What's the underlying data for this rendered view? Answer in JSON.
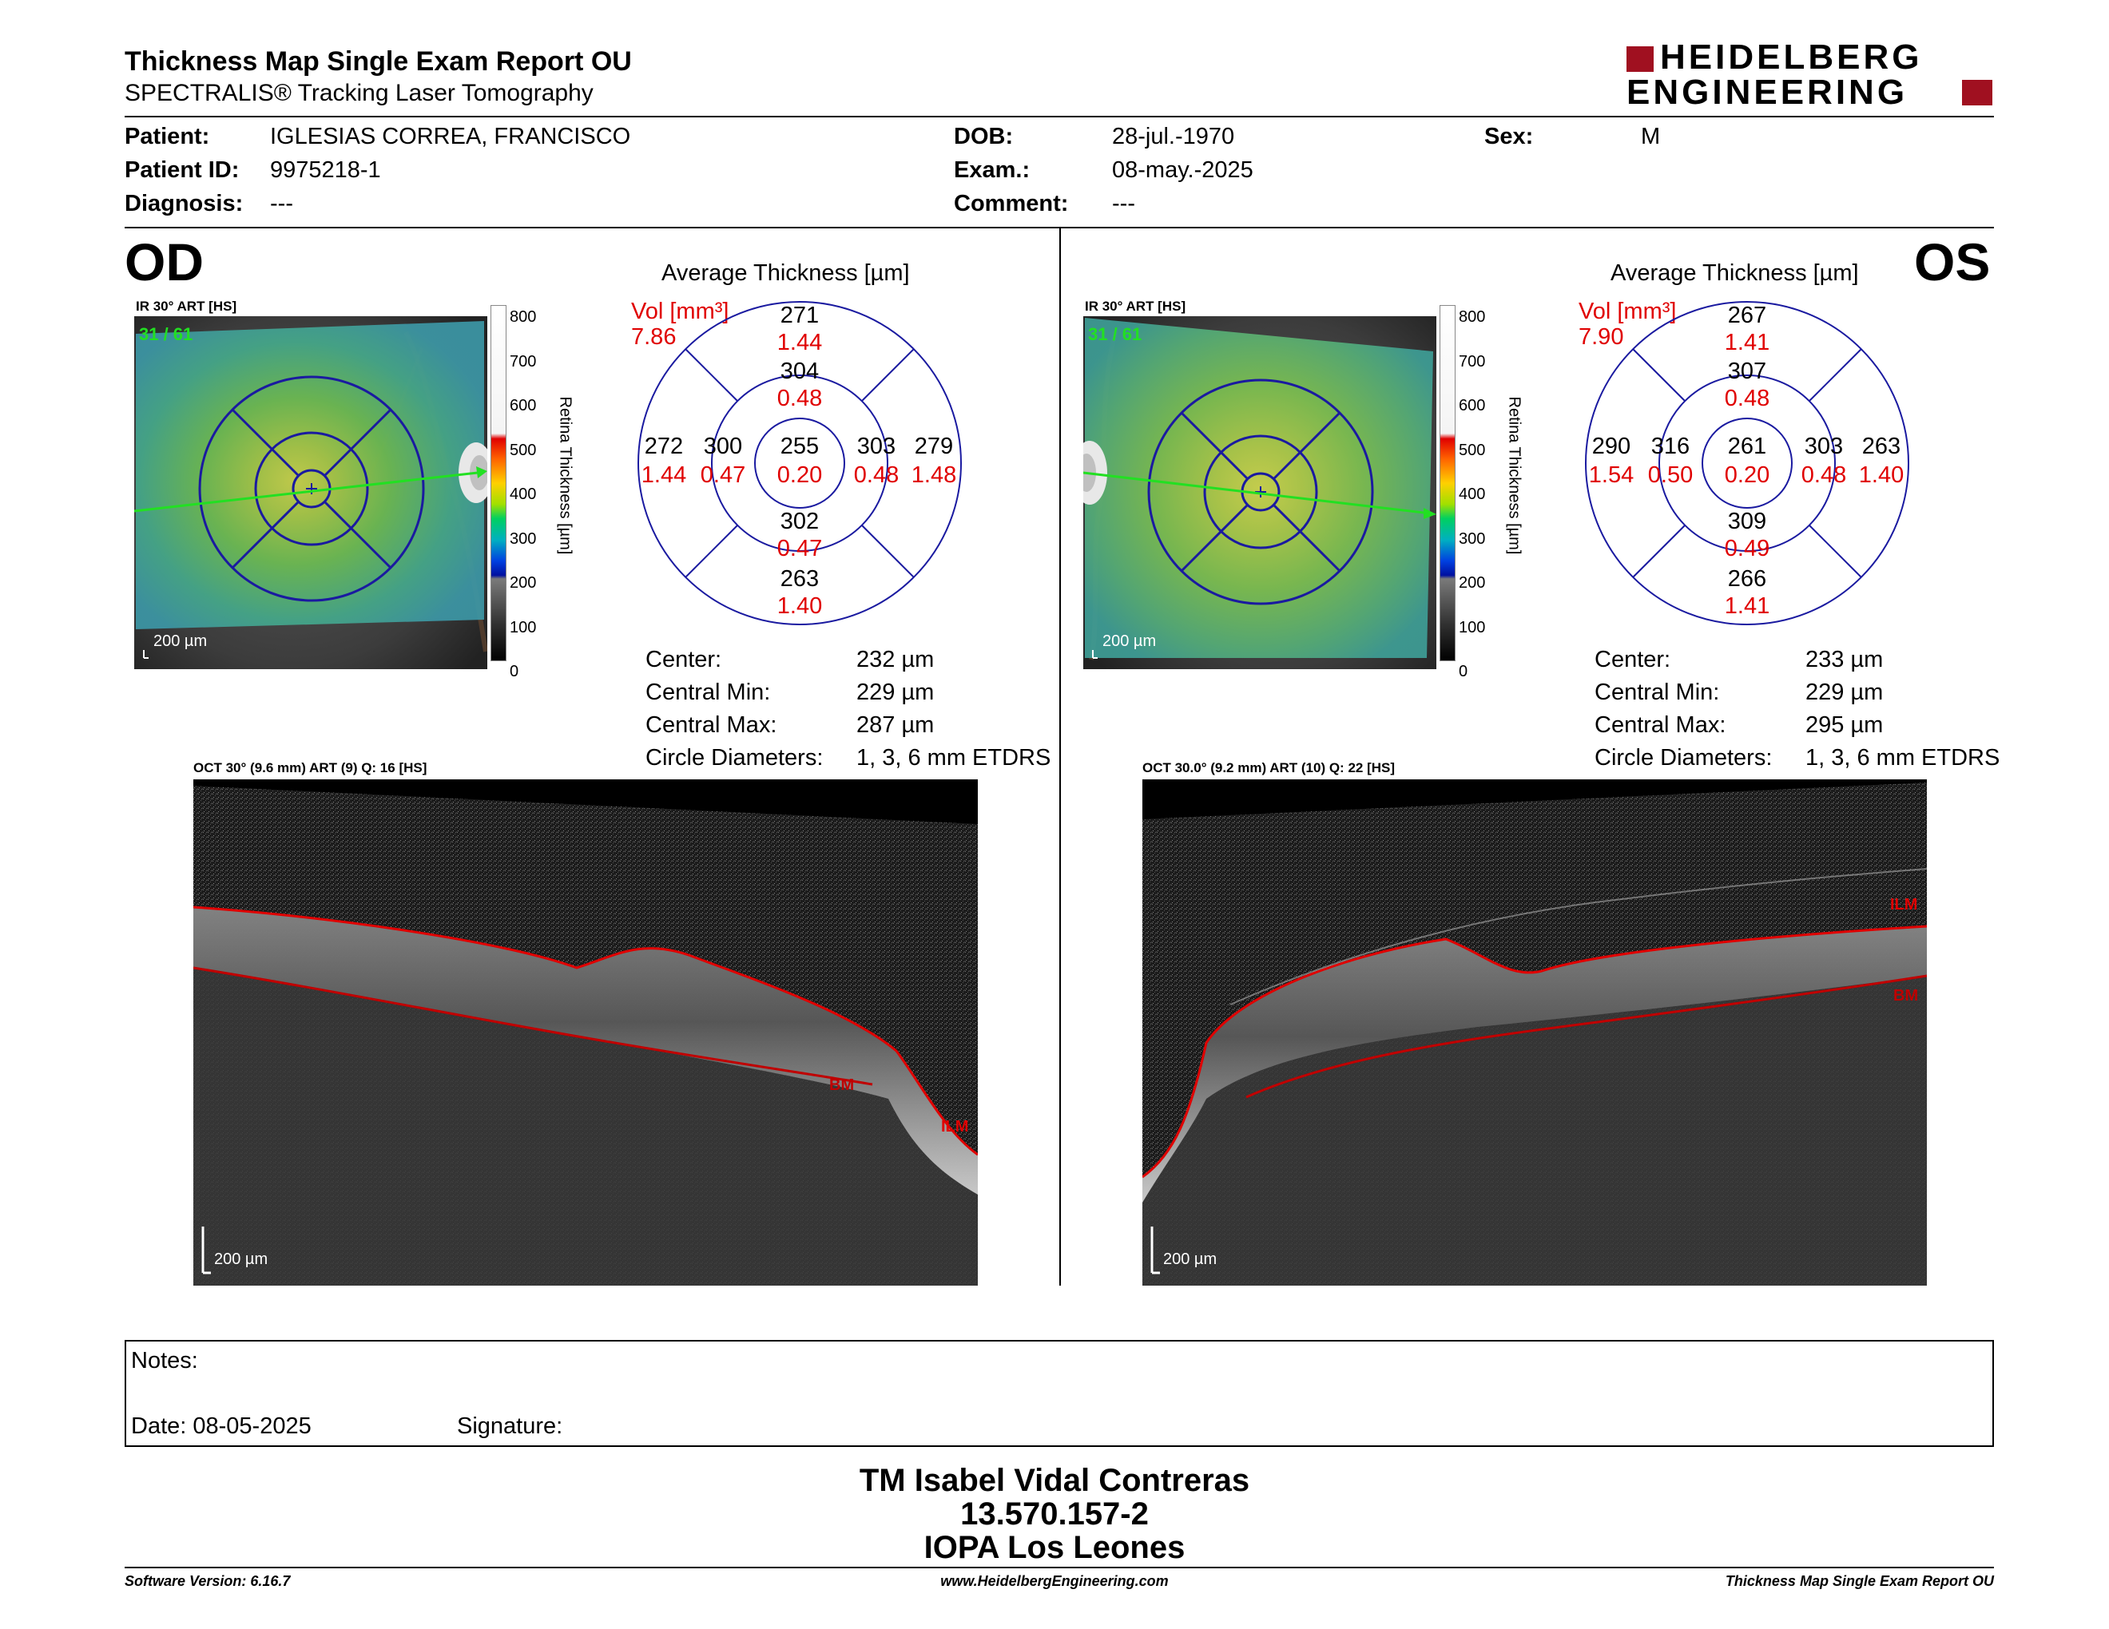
{
  "header": {
    "title": "Thickness Map Single Exam Report OU",
    "subtitle": "SPECTRALIS® Tracking Laser Tomography",
    "logo_line1": "HEIDELBERG",
    "logo_line2": "ENGINEERING"
  },
  "patient": {
    "patient_label": "Patient:",
    "patient_value": "IGLESIAS CORREA, FRANCISCO",
    "id_label": "Patient ID:",
    "id_value": "9975218-1",
    "diag_label": "Diagnosis:",
    "diag_value": "---",
    "dob_label": "DOB:",
    "dob_value": "28-jul.-1970",
    "exam_label": "Exam.:",
    "exam_value": "08-may.-2025",
    "comment_label": "Comment:",
    "comment_value": "---",
    "sex_label": "Sex:",
    "sex_value": "M"
  },
  "od": {
    "eye": "OD",
    "ir_label": "IR 30° ART [HS]",
    "ir_counter": "31 / 61",
    "scale_label": "200 µm",
    "colorbar_ticks": [
      "800",
      "700",
      "600",
      "500",
      "400",
      "300",
      "200",
      "100",
      "0"
    ],
    "colorbar_title": "Retina Thickness [µm]",
    "avg_title": "Average Thickness [µm]",
    "vol_label": "Vol [mm³]",
    "vol_value": "7.86",
    "etdrs": {
      "center_t": "255",
      "center_v": "0.20",
      "inner_sup_t": "304",
      "inner_sup_v": "0.48",
      "inner_inf_t": "302",
      "inner_inf_v": "0.47",
      "inner_left_t": "300",
      "inner_left_v": "0.47",
      "inner_right_t": "303",
      "inner_right_v": "0.48",
      "outer_sup_t": "271",
      "outer_sup_v": "1.44",
      "outer_inf_t": "263",
      "outer_inf_v": "1.40",
      "outer_left_t": "272",
      "outer_left_v": "1.44",
      "outer_right_t": "279",
      "outer_right_v": "1.48"
    },
    "stats": {
      "center_label": "Center:",
      "center_value": "232 µm",
      "cmin_label": "Central Min:",
      "cmin_value": "229 µm",
      "cmax_label": "Central Max:",
      "cmax_value": "287 µm",
      "circ_label": "Circle Diameters:",
      "circ_value": "1, 3, 6 mm ETDRS"
    },
    "oct_label": "OCT 30° (9.6 mm) ART (9) Q: 16 [HS]",
    "oct_scale": "200 µm",
    "bm_label": "BM",
    "ilm_label": "ILM"
  },
  "os": {
    "eye": "OS",
    "ir_label": "IR 30° ART [HS]",
    "ir_counter": "31 / 61",
    "scale_label": "200 µm",
    "colorbar_ticks": [
      "800",
      "700",
      "600",
      "500",
      "400",
      "300",
      "200",
      "100",
      "0"
    ],
    "colorbar_title": "Retina Thickness [µm]",
    "avg_title": "Average Thickness [µm]",
    "vol_label": "Vol [mm³]",
    "vol_value": "7.90",
    "etdrs": {
      "center_t": "261",
      "center_v": "0.20",
      "inner_sup_t": "307",
      "inner_sup_v": "0.48",
      "inner_inf_t": "309",
      "inner_inf_v": "0.49",
      "inner_left_t": "316",
      "inner_left_v": "0.50",
      "inner_right_t": "303",
      "inner_right_v": "0.48",
      "outer_sup_t": "267",
      "outer_sup_v": "1.41",
      "outer_inf_t": "266",
      "outer_inf_v": "1.41",
      "outer_left_t": "290",
      "outer_left_v": "1.54",
      "outer_right_t": "263",
      "outer_right_v": "1.40"
    },
    "stats": {
      "center_label": "Center:",
      "center_value": "233 µm",
      "cmin_label": "Central Min:",
      "cmin_value": "229 µm",
      "cmax_label": "Central Max:",
      "cmax_value": "295 µm",
      "circ_label": "Circle Diameters:",
      "circ_value": "1, 3, 6 mm ETDRS"
    },
    "oct_label": "OCT 30.0° (9.2 mm) ART (10) Q: 22 [HS]",
    "oct_scale": "200 µm",
    "bm_label": "BM",
    "ilm_label": "ILM"
  },
  "notes": {
    "notes_label": "Notes:",
    "date_label": "Date: 08-05-2025",
    "signature_label": "Signature:"
  },
  "signoff": {
    "name": "TM Isabel Vidal Contreras",
    "rut": "13.570.157-2",
    "clinic": "IOPA Los Leones"
  },
  "footer": {
    "software": "Software Version: 6.16.7",
    "website": "www.HeidelbergEngineering.com",
    "report": "Thickness Map Single Exam Report OU"
  },
  "colors": {
    "red": "#e00000",
    "blue": "#1a1aa0",
    "logo_red": "#a01020"
  }
}
